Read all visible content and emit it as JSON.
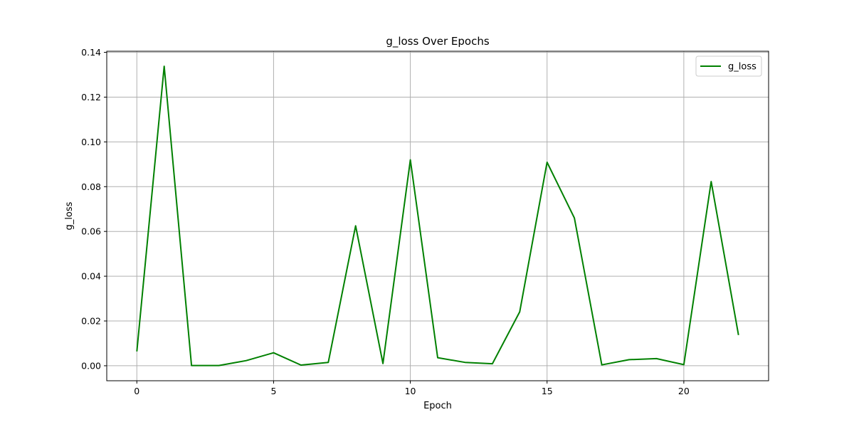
{
  "chart_data": {
    "type": "line",
    "title": "g_loss Over Epochs",
    "xlabel": "Epoch",
    "ylabel": "g_loss",
    "xlim": [
      -1.1,
      23.1
    ],
    "ylim": [
      -0.0067,
      0.1405
    ],
    "x_ticks": [
      0,
      5,
      10,
      15,
      20
    ],
    "x_tick_labels": [
      "0",
      "5",
      "10",
      "15",
      "20"
    ],
    "y_ticks": [
      0.0,
      0.02,
      0.04,
      0.06,
      0.08,
      0.1,
      0.12,
      0.14
    ],
    "y_tick_labels": [
      "0.00",
      "0.02",
      "0.04",
      "0.06",
      "0.08",
      "0.10",
      "0.12",
      "0.14"
    ],
    "grid": true,
    "legend_position": "top-right",
    "series": [
      {
        "name": "g_loss",
        "color": "#008000",
        "x": [
          0,
          1,
          2,
          3,
          4,
          5,
          6,
          7,
          8,
          9,
          10,
          11,
          12,
          13,
          14,
          15,
          16,
          17,
          18,
          19,
          20,
          21,
          22
        ],
        "values": [
          0.0064,
          0.1338,
          0.0001,
          0.0001,
          0.0023,
          0.0058,
          0.0003,
          0.0015,
          0.0625,
          0.001,
          0.092,
          0.0036,
          0.0015,
          0.0009,
          0.0241,
          0.0909,
          0.066,
          0.0004,
          0.0027,
          0.0032,
          0.0005,
          0.0823,
          0.0137
        ]
      }
    ]
  }
}
